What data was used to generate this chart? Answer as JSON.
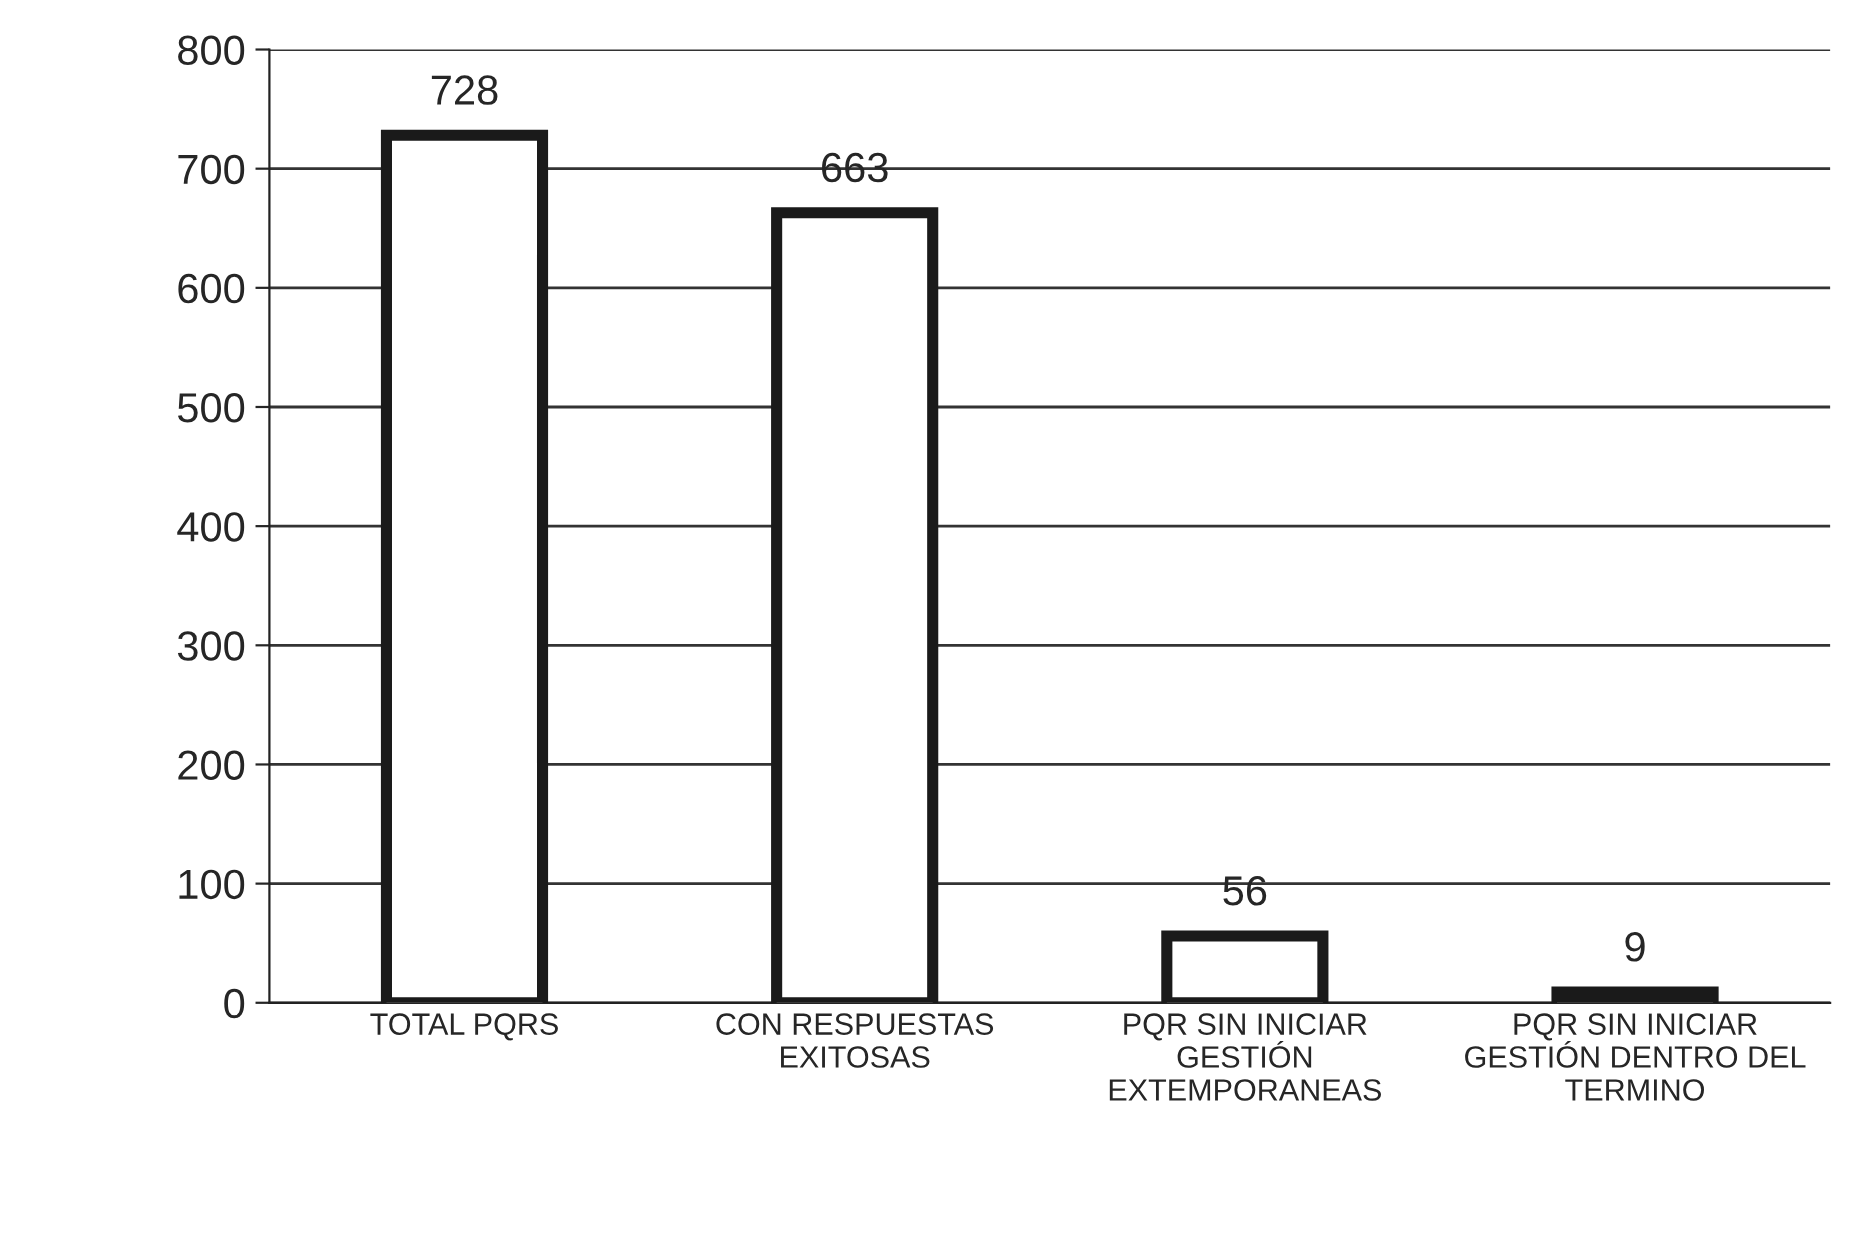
{
  "chart_data": {
    "type": "bar",
    "categories": [
      "TOTAL PQRS",
      "CON RESPUESTAS\nEXITOSAS",
      "PQR SIN INICIAR\nGESTIÓN\nEXTEMPORANEAS",
      "PQR SIN INICIAR\nGESTIÓN DENTRO DEL\nTERMINO"
    ],
    "values": [
      728,
      663,
      56,
      9
    ],
    "color": "#ffffff",
    "ylim": [
      0,
      800
    ],
    "yticks": [
      0,
      100,
      200,
      300,
      400,
      500,
      600,
      700,
      800
    ],
    "grid": "y",
    "data_labels": true,
    "legend": false
  }
}
